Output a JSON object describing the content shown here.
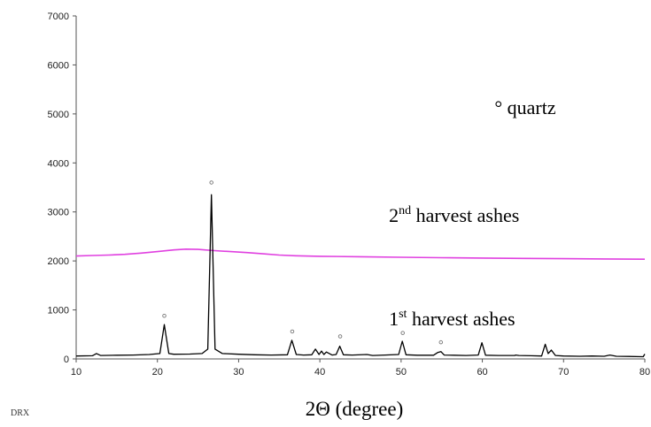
{
  "chart_data": {
    "type": "line",
    "xlabel": "2Θ (degree)",
    "ylabel": "",
    "xlim": [
      10,
      80
    ],
    "ylim": [
      0,
      7000
    ],
    "x_ticks": [
      "10",
      "20",
      "30",
      "40",
      "50",
      "60",
      "70",
      "80"
    ],
    "y_ticks": [
      "0",
      "1000",
      "2000",
      "3000",
      "4000",
      "5000",
      "6000",
      "7000"
    ],
    "grid": false,
    "series": [
      {
        "name": "2nd harvest ashes",
        "color": "#e040e0",
        "x": [
          10,
          12,
          14,
          16,
          18,
          20,
          22,
          23.5,
          25,
          27,
          29,
          31,
          33,
          35,
          37,
          40,
          45,
          50,
          55,
          60,
          65,
          70,
          75,
          80
        ],
        "y": [
          2100,
          2110,
          2120,
          2135,
          2160,
          2190,
          2225,
          2240,
          2235,
          2210,
          2190,
          2170,
          2145,
          2120,
          2105,
          2095,
          2085,
          2075,
          2065,
          2058,
          2052,
          2045,
          2040,
          2035
        ]
      },
      {
        "name": "1st harvest ashes",
        "color": "#000000",
        "x": [
          10,
          12,
          12.5,
          13,
          15,
          17,
          19,
          20.3,
          20.85,
          21.4,
          22,
          24,
          25.5,
          26.2,
          26.65,
          27.1,
          28,
          30,
          32,
          34,
          36,
          36.55,
          37.1,
          38,
          39,
          39.45,
          39.9,
          40.2,
          40.5,
          40.8,
          41.5,
          42.0,
          42.45,
          42.9,
          44,
          45.8,
          46.5,
          48,
          49.7,
          50.15,
          50.6,
          52,
          54,
          54.5,
          54.9,
          55.3,
          56.5,
          58,
          59.5,
          59.95,
          60.4,
          62,
          64,
          64.1,
          64.5,
          66,
          67.3,
          67.75,
          68.1,
          68.5,
          69,
          70,
          72,
          73.5,
          75,
          75.7,
          76.5,
          78,
          79.8,
          80
        ],
        "y": [
          60,
          65,
          110,
          70,
          75,
          80,
          90,
          110,
          700,
          110,
          95,
          100,
          110,
          200,
          3350,
          200,
          110,
          95,
          85,
          80,
          85,
          380,
          90,
          80,
          85,
          200,
          90,
          160,
          90,
          140,
          80,
          90,
          260,
          85,
          80,
          90,
          70,
          80,
          90,
          360,
          85,
          75,
          75,
          130,
          150,
          80,
          75,
          70,
          80,
          330,
          75,
          70,
          70,
          80,
          70,
          65,
          60,
          300,
          110,
          180,
          70,
          60,
          55,
          60,
          55,
          80,
          55,
          50,
          45,
          100
        ]
      }
    ],
    "annotations": [
      {
        "text": "° quartz",
        "x": 61.5,
        "y": 5000
      },
      {
        "text_main": "2",
        "sup": "nd",
        "text_rest": " harvest ashes",
        "x": 48.5,
        "y": 2800
      },
      {
        "text_main": "1",
        "sup": "st",
        "text_rest": " harvest ashes",
        "x": 48.5,
        "y": 690
      }
    ],
    "quartz_markers": [
      {
        "x": 20.85,
        "y": 880
      },
      {
        "x": 26.65,
        "y": 3600
      },
      {
        "x": 36.6,
        "y": 560
      },
      {
        "x": 42.5,
        "y": 460
      },
      {
        "x": 50.2,
        "y": 530
      },
      {
        "x": 54.9,
        "y": 340
      }
    ],
    "quartz_marker_symbol": "°"
  },
  "footer": {
    "source_label": "DRX"
  }
}
